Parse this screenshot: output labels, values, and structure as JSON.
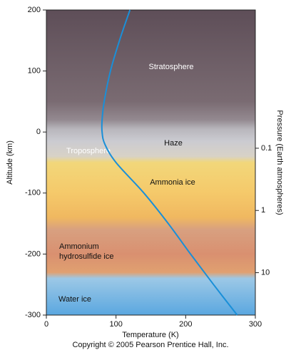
{
  "chart_data": {
    "type": "line",
    "xlabel": "Temperature (K)",
    "ylabel": "Altitude (km)",
    "y2label": "Pressure (Earth atmospheres)",
    "copyright": "Copyright © 2005 Pearson Prentice Hall, Inc.",
    "annotations": [
      "Stratosphere",
      "Haze",
      "Troposphere",
      "Ammonia ice",
      "Ammonium",
      "hydrosulfide ice",
      "Water ice"
    ],
    "x": [
      120,
      105,
      92,
      83,
      80,
      80,
      84,
      100,
      140,
      175,
      207,
      240,
      274
    ],
    "series": [
      {
        "color": "#1a8fd8",
        "values": [
          200,
          150,
          100,
          50,
          20,
          0,
          -20,
          -50,
          -100,
          -150,
          -200,
          -250,
          -300
        ]
      }
    ],
    "xlim": [
      0,
      300
    ],
    "xticks": [
      0,
      100,
      200,
      300
    ],
    "ylim": [
      -300,
      200
    ],
    "yticks": [
      200,
      100,
      0,
      -100,
      -200,
      -300
    ],
    "y2lim": [
      48,
      0.0006
    ],
    "y2scale": "log",
    "y2ticks": [
      0.1,
      1,
      10
    ]
  }
}
